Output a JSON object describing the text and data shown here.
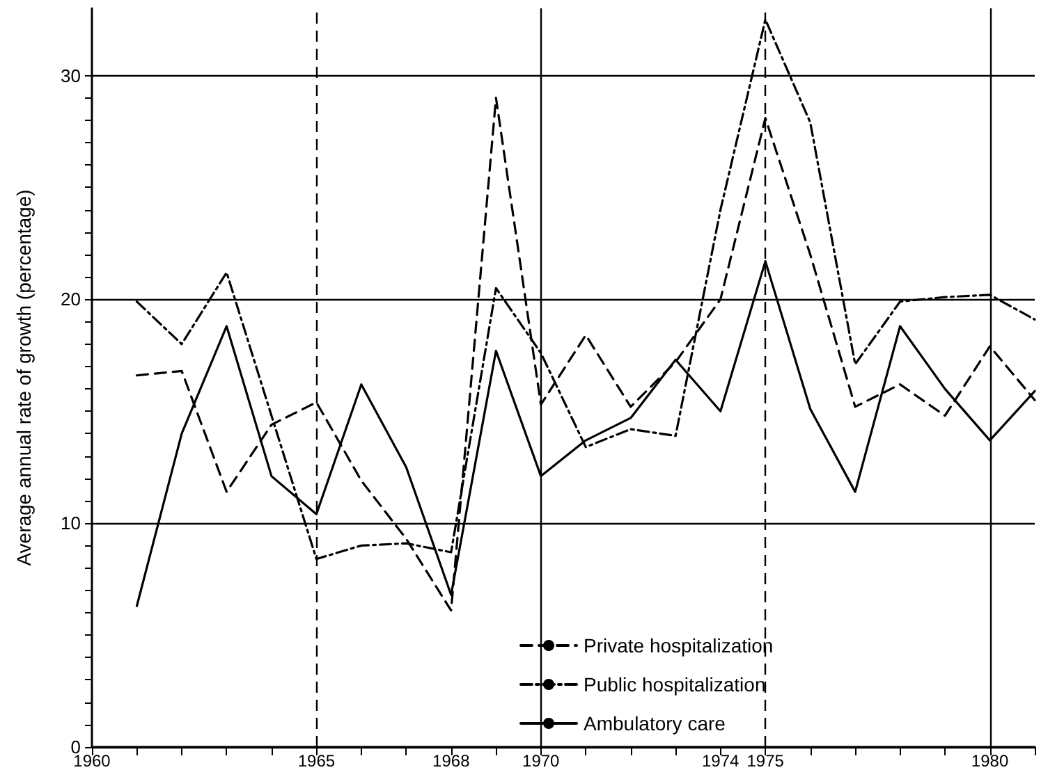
{
  "chart_data": {
    "type": "line",
    "ylabel": "Average annual rate of growth (percentage)",
    "x": [
      1961,
      1962,
      1963,
      1964,
      1965,
      1966,
      1967,
      1968,
      1969,
      1970,
      1971,
      1972,
      1973,
      1974,
      1975,
      1976,
      1977,
      1978,
      1979,
      1980,
      1981
    ],
    "series": [
      {
        "name": "Private hospitalization",
        "color": "#000000",
        "line_style": "dashed",
        "values": [
          16.6,
          16.8,
          11.4,
          14.4,
          15.4,
          11.9,
          9.3,
          6.1,
          29.0,
          15.3,
          18.4,
          15.2,
          17.2,
          20.0,
          28.1,
          22.0,
          15.2,
          16.2,
          14.8,
          17.9,
          15.5
        ]
      },
      {
        "name": "Public hospitalization",
        "color": "#000000",
        "line_style": "dashdot",
        "values": [
          19.9,
          18.0,
          21.2,
          14.8,
          8.4,
          9.0,
          9.1,
          8.7,
          20.5,
          17.6,
          13.4,
          14.2,
          13.9,
          24.0,
          32.5,
          27.9,
          17.1,
          19.9,
          20.1,
          20.2,
          19.1
        ]
      },
      {
        "name": "Ambulatory care",
        "color": "#000000",
        "line_style": "solid",
        "values": [
          6.3,
          14.0,
          18.8,
          12.1,
          10.4,
          16.2,
          12.5,
          6.8,
          17.7,
          12.1,
          13.7,
          14.7,
          17.3,
          15.0,
          21.7,
          15.1,
          11.4,
          18.8,
          16.0,
          13.7,
          15.9
        ]
      }
    ],
    "xlim": [
      1960,
      1981
    ],
    "xticks": [
      1960,
      {
        "value": 1961,
        "label": null
      },
      {
        "value": 1962,
        "label": null
      },
      {
        "value": 1963,
        "label": null
      },
      {
        "value": 1964,
        "label": null
      },
      1965,
      {
        "value": 1966,
        "label": null
      },
      {
        "value": 1967,
        "label": null
      },
      1968,
      {
        "value": 1969,
        "label": null
      },
      1970,
      {
        "value": 1971,
        "label": null
      },
      {
        "value": 1972,
        "label": null
      },
      {
        "value": 1973,
        "label": null
      },
      1974,
      1975,
      {
        "value": 1976,
        "label": null
      },
      {
        "value": 1977,
        "label": null
      },
      {
        "value": 1978,
        "label": null
      },
      {
        "value": 1979,
        "label": null
      },
      1980,
      {
        "value": 1981,
        "label": null
      }
    ],
    "ylim": [
      0,
      33
    ],
    "yticks": [
      0,
      {
        "value": 1,
        "label": null
      },
      {
        "value": 2,
        "label": null
      },
      {
        "value": 3,
        "label": null
      },
      {
        "value": 4,
        "label": null
      },
      {
        "value": 5,
        "label": null
      },
      {
        "value": 6,
        "label": null
      },
      {
        "value": 7,
        "label": null
      },
      {
        "value": 8,
        "label": null
      },
      {
        "value": 9,
        "label": null
      },
      10,
      {
        "value": 11,
        "label": null
      },
      {
        "value": 12,
        "label": null
      },
      {
        "value": 13,
        "label": null
      },
      {
        "value": 14,
        "label": null
      },
      {
        "value": 15,
        "label": null
      },
      {
        "value": 16,
        "label": null
      },
      {
        "value": 17,
        "label": null
      },
      {
        "value": 18,
        "label": null
      },
      {
        "value": 19,
        "label": null
      },
      20,
      {
        "value": 21,
        "label": null
      },
      {
        "value": 22,
        "label": null
      },
      {
        "value": 23,
        "label": null
      },
      {
        "value": 24,
        "label": null
      },
      {
        "value": 25,
        "label": null
      },
      {
        "value": 26,
        "label": null
      },
      {
        "value": 27,
        "label": null
      },
      {
        "value": 28,
        "label": null
      },
      {
        "value": 29,
        "label": null
      },
      30
    ],
    "grid": "y",
    "ref_lines": [
      {
        "axis": "x",
        "value": 1965,
        "line_style": "dashed"
      },
      {
        "axis": "x",
        "value": 1970,
        "line_style": "solid"
      },
      {
        "axis": "x",
        "value": 1975,
        "line_style": "dashed"
      },
      {
        "axis": "x",
        "value": 1980,
        "line_style": "solid"
      }
    ],
    "legend": "bottom",
    "marker": "none"
  }
}
